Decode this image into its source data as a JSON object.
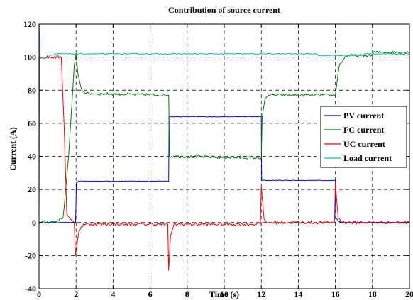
{
  "chart_data": {
    "type": "line",
    "title": "Contribution of source current",
    "xlabel": "Time (s)",
    "ylabel": "Current (A)",
    "xlim": [
      0,
      20
    ],
    "ylim": [
      -40,
      120
    ],
    "xticks": [
      0,
      2,
      4,
      6,
      8,
      10,
      12,
      14,
      16,
      18,
      20
    ],
    "yticks": [
      -40,
      -20,
      0,
      20,
      40,
      60,
      80,
      100,
      120
    ],
    "xtick_labels": [
      "0",
      "2",
      "4",
      "6",
      "8",
      "10",
      "12",
      "14",
      "16",
      "18",
      "20"
    ],
    "ytick_labels": [
      "-40",
      "-20",
      "0",
      "20",
      "40",
      "60",
      "80",
      "100",
      "120"
    ],
    "grid": true,
    "legend_position": "right",
    "series": [
      {
        "name": "PV current",
        "color": "#0000ff",
        "points": [
          [
            0,
            0
          ],
          [
            1.97,
            0
          ],
          [
            2.02,
            24
          ],
          [
            2.15,
            25
          ],
          [
            7.0,
            25
          ],
          [
            7.02,
            64
          ],
          [
            12.0,
            64
          ],
          [
            12.02,
            25.5
          ],
          [
            16.0,
            25.5
          ],
          [
            16.02,
            3
          ],
          [
            16.2,
            0.5
          ],
          [
            16.5,
            0
          ],
          [
            20,
            0
          ]
        ],
        "noise": 0.2
      },
      {
        "name": "FC current",
        "color": "#008000",
        "points": [
          [
            0,
            0
          ],
          [
            0.9,
            0.5
          ],
          [
            1.3,
            3
          ],
          [
            1.6,
            40
          ],
          [
            1.9,
            95
          ],
          [
            2.0,
            102
          ],
          [
            2.1,
            90
          ],
          [
            2.3,
            80
          ],
          [
            2.6,
            78
          ],
          [
            7.0,
            77
          ],
          [
            7.05,
            40
          ],
          [
            12.0,
            39
          ],
          [
            12.05,
            64
          ],
          [
            12.2,
            75
          ],
          [
            12.4,
            77
          ],
          [
            16.0,
            77
          ],
          [
            16.2,
            95
          ],
          [
            16.6,
            101
          ],
          [
            18,
            101
          ],
          [
            18.05,
            103
          ],
          [
            20,
            103
          ]
        ],
        "noise": 0.8
      },
      {
        "name": "UC current",
        "color": "#ff0000",
        "points": [
          [
            0,
            0
          ],
          [
            0.02,
            115
          ],
          [
            0.05,
            100
          ],
          [
            0.5,
            100
          ],
          [
            1.2,
            100
          ],
          [
            1.35,
            60
          ],
          [
            1.5,
            5
          ],
          [
            1.7,
            2
          ],
          [
            1.9,
            0
          ],
          [
            1.97,
            -20
          ],
          [
            2.15,
            -5
          ],
          [
            2.4,
            -1
          ],
          [
            6.95,
            -1
          ],
          [
            7.0,
            -29
          ],
          [
            7.1,
            -8
          ],
          [
            7.3,
            -1
          ],
          [
            11.95,
            -1
          ],
          [
            12.0,
            22
          ],
          [
            12.15,
            2
          ],
          [
            12.3,
            0
          ],
          [
            15.95,
            0
          ],
          [
            16.0,
            24
          ],
          [
            16.15,
            3
          ],
          [
            16.4,
            0
          ],
          [
            20,
            0
          ]
        ],
        "noise": 0.9
      },
      {
        "name": "Load current",
        "color": "#00bfbf",
        "points": [
          [
            0,
            0
          ],
          [
            0.01,
            120
          ],
          [
            0.03,
            100
          ],
          [
            0.3,
            99
          ],
          [
            0.6,
            101
          ],
          [
            1.0,
            102
          ],
          [
            15.0,
            102
          ],
          [
            15.1,
            101
          ],
          [
            17.5,
            101
          ],
          [
            17.6,
            102
          ],
          [
            20,
            102
          ]
        ],
        "noise": 0.25
      }
    ]
  }
}
